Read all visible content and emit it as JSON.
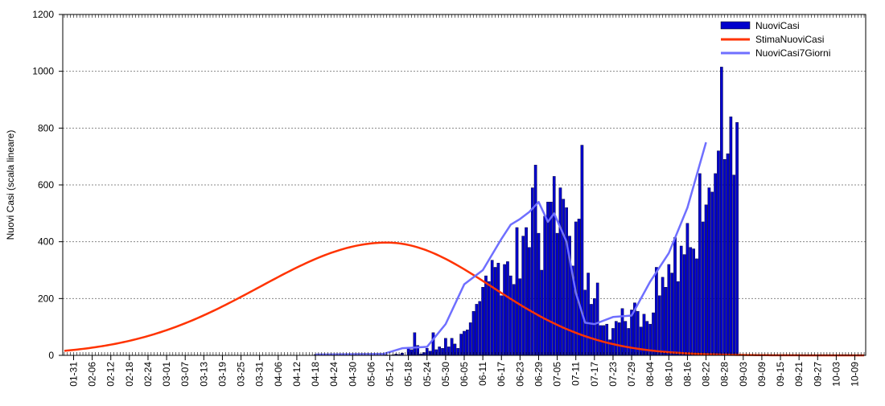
{
  "chart_data": {
    "type": "bar",
    "title": "",
    "xlabel": "",
    "ylabel": "Nuovi Casi (scala lineare)",
    "ylim": [
      0,
      1200
    ],
    "yticks": [
      0,
      200,
      400,
      600,
      800,
      1000,
      1200
    ],
    "grid": "horizontal dotted",
    "legend_position": "top-right",
    "x_start": "01-28",
    "x_end": "10-12",
    "xtick_labels": [
      "01-31",
      "02-06",
      "02-12",
      "02-18",
      "02-24",
      "03-01",
      "03-07",
      "03-13",
      "03-19",
      "03-25",
      "03-31",
      "04-06",
      "04-12",
      "04-18",
      "04-24",
      "04-30",
      "05-06",
      "05-12",
      "05-18",
      "05-24",
      "05-30",
      "06-05",
      "06-11",
      "06-17",
      "06-23",
      "06-29",
      "07-05",
      "07-11",
      "07-17",
      "07-23",
      "07-29",
      "08-04",
      "08-10",
      "08-16",
      "08-22",
      "08-28",
      "09-03",
      "09-09",
      "09-15",
      "09-21",
      "09-27",
      "10-03",
      "10-09"
    ],
    "series": [
      {
        "name": "NuoviCasi",
        "kind": "bar",
        "color": "#0000cc",
        "start_date": "04-18",
        "values": [
          3,
          0,
          2,
          5,
          1,
          0,
          3,
          2,
          4,
          0,
          1,
          2,
          3,
          0,
          5,
          2,
          1,
          0,
          2,
          1,
          3,
          0,
          4,
          2,
          1,
          2,
          5,
          3,
          8,
          0,
          25,
          20,
          80,
          35,
          5,
          10,
          25,
          15,
          80,
          20,
          30,
          25,
          60,
          30,
          60,
          40,
          25,
          75,
          85,
          90,
          115,
          155,
          180,
          190,
          240,
          280,
          260,
          335,
          310,
          325,
          210,
          320,
          330,
          280,
          250,
          450,
          270,
          420,
          450,
          380,
          590,
          670,
          430,
          300,
          490,
          540,
          540,
          630,
          430,
          590,
          550,
          520,
          420,
          315,
          470,
          480,
          740,
          230,
          290,
          180,
          200,
          255,
          105,
          105,
          110,
          55,
          95,
          120,
          115,
          165,
          120,
          95,
          160,
          185,
          155,
          100,
          145,
          120,
          110,
          150,
          310,
          210,
          275,
          240,
          320,
          290,
          415,
          260,
          385,
          355,
          465,
          380,
          375,
          340,
          640,
          470,
          530,
          590,
          575,
          640,
          720,
          1015,
          690,
          710,
          840,
          635,
          820
        ]
      },
      {
        "name": "StimaNuoviCasi",
        "kind": "line",
        "color": "#ff3300",
        "peak_date": "05-11",
        "peak_value": 397,
        "left_width_days": 41,
        "right_width_days": 34
      },
      {
        "name": "NuoviCasi7Giorni",
        "kind": "line",
        "color": "#6f6fff",
        "points": [
          [
            "04-18",
            3
          ],
          [
            "05-10",
            5
          ],
          [
            "05-16",
            25
          ],
          [
            "05-24",
            30
          ],
          [
            "05-30",
            110
          ],
          [
            "06-05",
            250
          ],
          [
            "06-11",
            300
          ],
          [
            "06-17",
            410
          ],
          [
            "06-20",
            460
          ],
          [
            "06-23",
            480
          ],
          [
            "06-26",
            505
          ],
          [
            "06-29",
            540
          ],
          [
            "07-02",
            470
          ],
          [
            "07-04",
            500
          ],
          [
            "07-08",
            400
          ],
          [
            "07-11",
            220
          ],
          [
            "07-14",
            115
          ],
          [
            "07-17",
            110
          ],
          [
            "07-23",
            135
          ],
          [
            "07-29",
            140
          ],
          [
            "08-04",
            260
          ],
          [
            "08-10",
            360
          ],
          [
            "08-16",
            520
          ],
          [
            "08-22",
            750
          ]
        ]
      }
    ]
  }
}
